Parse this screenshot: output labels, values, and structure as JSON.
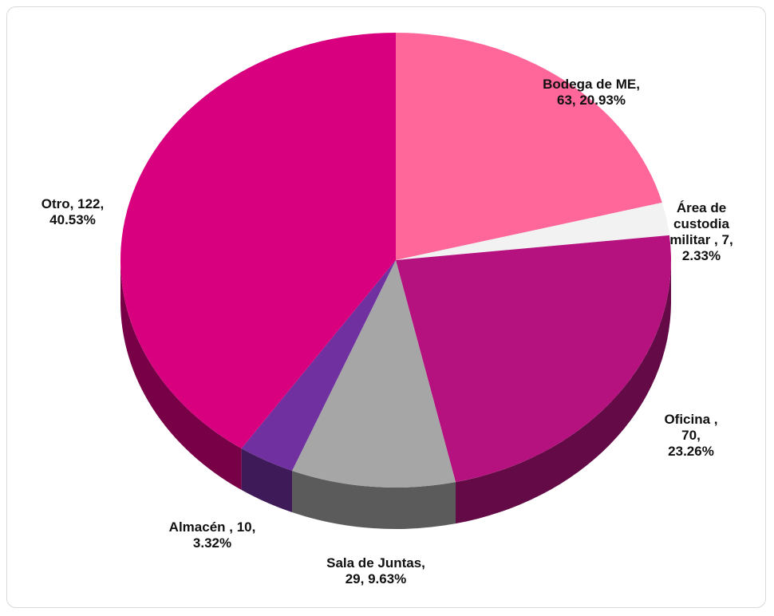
{
  "chart_data": {
    "type": "pie",
    "values": [
      63,
      7,
      70,
      29,
      10,
      122
    ],
    "value_labels": [
      "Bodega de ME,\n63, 20.93%",
      "Área de custodia\nmilitar , 7, 2.33%",
      "Oficina , 70,\n23.26%",
      "Sala de Juntas,\n29, 9.63%",
      "Almacén , 10,\n3.32%",
      "Otro, 122,\n40.53%"
    ],
    "colors": [
      "#ff6699",
      "#f2f2f2",
      "#b5127f",
      "#a6a6a6",
      "#7030a0",
      "#d90080"
    ]
  }
}
